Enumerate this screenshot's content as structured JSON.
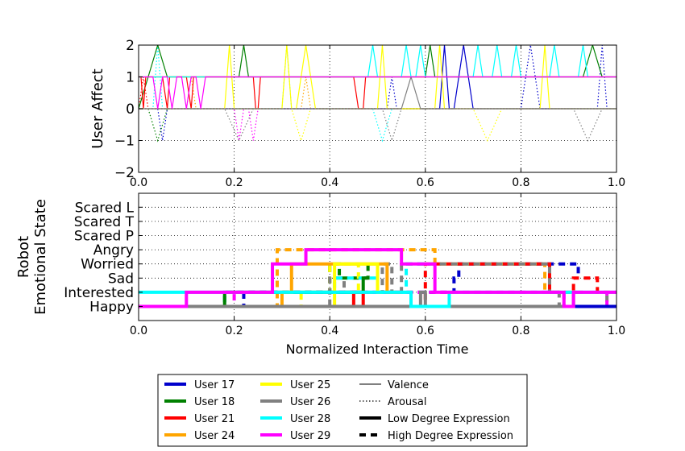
{
  "chart_data": [
    {
      "type": "line",
      "ylabel": "User Affect",
      "xlim": [
        0,
        1
      ],
      "ylim": [
        -2,
        2
      ],
      "x_ticks": [
        "0.0",
        "0.2",
        "0.4",
        "0.6",
        "0.8",
        "1.0"
      ],
      "y_ticks": [
        "2",
        "1",
        "0",
        "−1",
        "−2"
      ],
      "grid": true,
      "series": [
        {
          "name": "User 17",
          "color": "#0000cc",
          "valence": {
            "x": [
              0.0,
              0.01,
              0.63,
              0.64,
              0.65,
              0.66,
              0.68,
              0.7,
              0.72,
              1.0
            ],
            "y": [
              0,
              0,
              0,
              2,
              0,
              0,
              2,
              0,
              0,
              0
            ]
          },
          "arousal": {
            "x": [
              0.0,
              0.04,
              0.05,
              0.06,
              0.52,
              0.53,
              0.54,
              0.8,
              0.82,
              0.84,
              0.96,
              0.97,
              0.98,
              1.0
            ],
            "y": [
              0,
              0,
              -1,
              0,
              0,
              1,
              0,
              0,
              2,
              0,
              0,
              2,
              0,
              0
            ]
          }
        },
        {
          "name": "User 18",
          "color": "#008000",
          "valence": {
            "x": [
              0.0,
              0.02,
              0.04,
              0.06,
              0.21,
              0.22,
              0.23,
              0.6,
              0.61,
              0.62,
              0.93,
              0.95,
              0.97,
              1.0
            ],
            "y": [
              0,
              1,
              2,
              1,
              1,
              2,
              1,
              1,
              2,
              1,
              1,
              2,
              1,
              1
            ]
          },
          "arousal": {
            "x": [
              0.0,
              0.02,
              0.04,
              0.06,
              1.0
            ],
            "y": [
              0,
              0,
              -1,
              0,
              0
            ]
          }
        },
        {
          "name": "User 21",
          "color": "#ff0000",
          "valence": {
            "x": [
              0.0,
              0.005,
              0.01,
              0.015,
              0.05,
              0.06,
              0.065,
              0.1,
              0.11,
              0.115,
              0.24,
              0.245,
              0.25,
              0.255,
              0.45,
              0.46,
              0.47,
              0.475,
              1.0
            ],
            "y": [
              1,
              1,
              0,
              1,
              1,
              0,
              1,
              1,
              0,
              1,
              1,
              0,
              0,
              1,
              1,
              0,
              0,
              1,
              1
            ]
          },
          "arousal": {
            "x": [
              0.0,
              0.01,
              0.02,
              1.0
            ],
            "y": [
              0,
              1,
              0,
              0
            ]
          }
        },
        {
          "name": "User 24",
          "color": "#ffa500",
          "valence": {
            "x": [
              0.0,
              1.0
            ],
            "y": [
              1,
              1
            ]
          },
          "arousal": {
            "x": [
              0.0,
              0.1,
              0.11,
              0.12,
              0.34,
              0.35,
              0.36,
              1.0
            ],
            "y": [
              0,
              0,
              1,
              0,
              0,
              1,
              0,
              0
            ]
          }
        },
        {
          "name": "User 25",
          "color": "#ffff00",
          "valence": {
            "x": [
              0.0,
              0.18,
              0.19,
              0.2,
              0.3,
              0.31,
              0.32,
              0.33,
              0.35,
              0.37,
              0.5,
              0.51,
              0.52,
              0.62,
              0.63,
              0.64,
              0.84,
              0.85,
              0.86,
              1.0
            ],
            "y": [
              0,
              0,
              2,
              0,
              0,
              2,
              0,
              0,
              2,
              0,
              0,
              2,
              0,
              0,
              2,
              0,
              0,
              2,
              0,
              0
            ]
          },
          "arousal": {
            "x": [
              0.0,
              0.32,
              0.34,
              0.36,
              0.7,
              0.73,
              0.76,
              1.0
            ],
            "y": [
              0,
              0,
              -1,
              0,
              0,
              -1,
              0,
              0
            ]
          }
        },
        {
          "name": "User 26",
          "color": "#808080",
          "valence": {
            "x": [
              0.0,
              0.55,
              0.57,
              0.59,
              1.0
            ],
            "y": [
              0,
              0,
              1,
              0,
              0
            ]
          },
          "arousal": {
            "x": [
              0.0,
              0.18,
              0.21,
              0.24,
              0.51,
              0.53,
              0.55,
              0.91,
              0.94,
              0.97,
              1.0
            ],
            "y": [
              0,
              0,
              -1,
              0,
              0,
              -1,
              0,
              0,
              -1,
              0,
              0
            ]
          }
        },
        {
          "name": "User 28",
          "color": "#00ffff",
          "valence": {
            "x": [
              0.0,
              0.48,
              0.49,
              0.5,
              0.55,
              0.56,
              0.57,
              0.58,
              0.59,
              0.6,
              0.7,
              0.71,
              0.72,
              0.74,
              0.75,
              0.76,
              0.78,
              0.79,
              0.8,
              0.86,
              0.87,
              0.88,
              0.92,
              0.93,
              0.94,
              1.0
            ],
            "y": [
              1,
              1,
              2,
              1,
              1,
              2,
              1,
              1,
              2,
              1,
              1,
              2,
              1,
              1,
              2,
              1,
              1,
              2,
              1,
              1,
              2,
              1,
              1,
              2,
              1,
              1
            ]
          },
          "arousal": {
            "x": [
              0.0,
              0.03,
              0.04,
              0.05,
              0.3,
              0.31,
              0.32,
              0.49,
              0.51,
              0.53,
              1.0
            ],
            "y": [
              0,
              0,
              2,
              0,
              0,
              2,
              0,
              0,
              -1,
              0,
              0
            ]
          }
        },
        {
          "name": "User 29",
          "color": "#ff00ff",
          "valence": {
            "x": [
              0.0,
              0.03,
              0.04,
              0.05,
              0.06,
              0.07,
              0.08,
              0.09,
              0.1,
              0.11,
              0.12,
              0.13,
              0.14,
              0.15,
              1.0
            ],
            "y": [
              1,
              1,
              0,
              1,
              1,
              0,
              1,
              1,
              0,
              1,
              1,
              0,
              1,
              1,
              1
            ]
          },
          "arousal": {
            "x": [
              0.0,
              0.2,
              0.21,
              0.22,
              0.23,
              0.24,
              0.25,
              1.0
            ],
            "y": [
              0,
              0,
              -1,
              0,
              0,
              -1,
              0,
              0
            ]
          }
        }
      ]
    },
    {
      "type": "line",
      "xlabel": "Normalized Interaction Time",
      "ylabel": [
        "Robot",
        "Emotional State"
      ],
      "xlim": [
        0,
        1
      ],
      "x_ticks": [
        "0.0",
        "0.2",
        "0.4",
        "0.6",
        "0.8",
        "1.0"
      ],
      "categories": [
        "Happy",
        "Interested",
        "Sad",
        "Worried",
        "Angry",
        "Scared P",
        "Scared T",
        "Scared L"
      ],
      "grid": true,
      "series": [
        {
          "name": "User 17",
          "color": "#0000cc",
          "low": {
            "x": [
              0.0,
              0.45,
              0.45,
              0.48,
              0.48,
              0.52,
              1.0
            ],
            "y": [
              0,
              0,
              0,
              0,
              0,
              0,
              0
            ]
          },
          "high": {
            "x": [
              0.0,
              0.22,
              0.22,
              0.66,
              0.66,
              0.67,
              0.67,
              0.92,
              0.92
            ],
            "y": [
              0,
              0,
              1,
              1,
              2,
              2,
              3,
              3,
              2
            ]
          }
        },
        {
          "name": "User 18",
          "color": "#008000",
          "low": {
            "x": [
              0.0,
              0.18,
              0.18,
              0.47,
              0.47,
              0.48
            ],
            "y": [
              0,
              0,
              1,
              1,
              2,
              2
            ]
          },
          "high": {
            "x": [
              0.0,
              0.18,
              0.18,
              0.4,
              0.4,
              0.42,
              0.42,
              0.48,
              0.48
            ],
            "y": [
              0,
              0,
              1,
              1,
              3,
              3,
              2,
              2,
              3
            ]
          }
        },
        {
          "name": "User 21",
          "color": "#ff0000",
          "low": {
            "x": [
              0.0,
              0.45,
              0.45,
              0.47,
              0.47,
              0.51
            ],
            "y": [
              0,
              0,
              1,
              1,
              0,
              0
            ]
          },
          "high": {
            "x": [
              0.0,
              0.6,
              0.6,
              0.86,
              0.86,
              0.91,
              0.91,
              0.96,
              0.96,
              1.0
            ],
            "y": [
              0,
              0,
              3,
              3,
              1,
              1,
              2,
              2,
              1,
              1
            ]
          }
        },
        {
          "name": "User 24",
          "color": "#ffa500",
          "low": {
            "x": [
              0.0,
              0.3,
              0.3,
              0.32,
              0.32,
              0.52,
              0.52,
              0.55
            ],
            "y": [
              0,
              0,
              1,
              1,
              3,
              3,
              1,
              1
            ]
          },
          "high": {
            "x": [
              0.0,
              0.15,
              0.15,
              0.29,
              0.29,
              0.62,
              0.62,
              0.85,
              0.85,
              0.87
            ],
            "y": [
              0,
              0,
              0,
              0,
              4,
              4,
              3,
              3,
              1,
              1
            ]
          }
        },
        {
          "name": "User 25",
          "color": "#ffff00",
          "low": {
            "x": [
              0.0,
              0.41,
              0.41,
              0.5,
              0.5,
              0.51
            ],
            "y": [
              0,
              0,
              3,
              3,
              1,
              1
            ]
          },
          "high": {
            "x": [
              0.0,
              0.34,
              0.34,
              0.4,
              0.4,
              0.46,
              0.46,
              0.48
            ],
            "y": [
              0,
              0,
              1,
              1,
              3,
              3,
              1,
              1
            ]
          }
        },
        {
          "name": "User 26",
          "color": "#808080",
          "low": {
            "x": [
              0.0,
              0.59,
              0.59,
              0.6,
              0.6,
              0.91,
              0.91,
              0.93
            ],
            "y": [
              0,
              0,
              1,
              1,
              0,
              0,
              1,
              1
            ]
          },
          "high": {
            "x": [
              0.0,
              0.4,
              0.4,
              0.43,
              0.43,
              0.51,
              0.51,
              0.53,
              0.53,
              0.55,
              0.55,
              0.86,
              0.86,
              0.88,
              0.88,
              0.98,
              0.98
            ],
            "y": [
              0,
              0,
              2,
              2,
              1,
              1,
              3,
              3,
              1,
              1,
              3,
              3,
              1,
              1,
              0,
              0,
              1
            ]
          }
        },
        {
          "name": "User 28",
          "color": "#00ffff",
          "low": {
            "x": [
              0.0,
              0.57,
              0.57,
              0.65,
              0.65,
              0.91,
              0.91,
              1.0
            ],
            "y": [
              1,
              1,
              0,
              0,
              1,
              1,
              1,
              1
            ]
          },
          "high": {
            "x": [
              0.0,
              0.18,
              0.18,
              0.41,
              0.41,
              0.5,
              0.5,
              0.56,
              0.56,
              0.61
            ],
            "y": [
              0,
              0,
              1,
              1,
              2,
              2,
              1,
              1,
              3,
              3
            ]
          }
        },
        {
          "name": "User 29",
          "color": "#ff00ff",
          "low": {
            "x": [
              0.0,
              0.1,
              0.1,
              0.28,
              0.28,
              0.35,
              0.35,
              0.55,
              0.55,
              0.62,
              0.62,
              0.89,
              0.89,
              0.91,
              0.91,
              1.0
            ],
            "y": [
              0,
              0,
              1,
              1,
              3,
              3,
              4,
              4,
              3,
              3,
              1,
              1,
              0,
              0,
              1,
              1
            ]
          },
          "high": {
            "x": [
              0.0,
              0.2,
              0.2,
              0.27,
              0.27,
              0.89,
              0.89,
              0.98,
              0.98
            ],
            "y": [
              0,
              0,
              1,
              1,
              1,
              1,
              0,
              0,
              1
            ]
          }
        }
      ]
    }
  ],
  "legend": {
    "placement": "bottom-center",
    "users": [
      "User 17",
      "User 18",
      "User 21",
      "User 24",
      "User 25",
      "User 26",
      "User 28",
      "User 29"
    ],
    "styles": [
      "Valence",
      "Arousal",
      "Low Degree Expression",
      "High Degree Expression"
    ]
  }
}
